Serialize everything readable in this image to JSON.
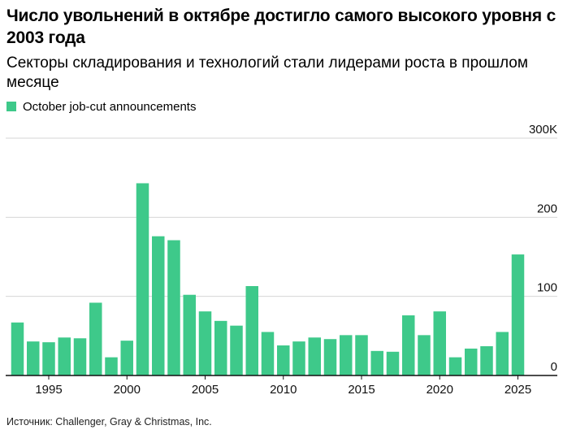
{
  "header": {
    "title": "Число увольнений в октябре достигло самого высокого уровня с 2003 года",
    "subtitle": "Секторы складирования и технологий стали лидерами роста в прошлом месяце"
  },
  "legend": {
    "label": "October job-cut announcements",
    "color": "#3ec98a"
  },
  "footer": {
    "source": "Источник: Challenger, Gray & Christmas, Inc."
  },
  "chart_data": {
    "type": "bar",
    "series_name": "October job-cut announcements",
    "color": "#3ec98a",
    "categories": [
      1993,
      1994,
      1995,
      1996,
      1997,
      1998,
      1999,
      2000,
      2001,
      2002,
      2003,
      2004,
      2005,
      2006,
      2007,
      2008,
      2009,
      2010,
      2011,
      2012,
      2013,
      2014,
      2015,
      2016,
      2017,
      2018,
      2019,
      2020,
      2021,
      2022,
      2023,
      2024,
      2025
    ],
    "values": [
      67,
      43,
      42,
      48,
      47,
      92,
      23,
      44,
      243,
      176,
      171,
      102,
      81,
      69,
      63,
      113,
      55,
      38,
      43,
      48,
      46,
      51,
      51,
      31,
      30,
      76,
      51,
      81,
      23,
      34,
      37,
      55,
      153
    ],
    "ylim": [
      0,
      300
    ],
    "yticks": [
      0,
      100,
      200,
      300
    ],
    "ytick_labels": [
      "0",
      "100",
      "200",
      "300K"
    ],
    "xticks": [
      1995,
      2000,
      2005,
      2010,
      2015,
      2020,
      2025
    ],
    "xtick_labels": [
      "1995",
      "2000",
      "2005",
      "2010",
      "2015",
      "2020",
      "2025"
    ],
    "ylabel": "",
    "xlabel": "",
    "grid": true
  }
}
